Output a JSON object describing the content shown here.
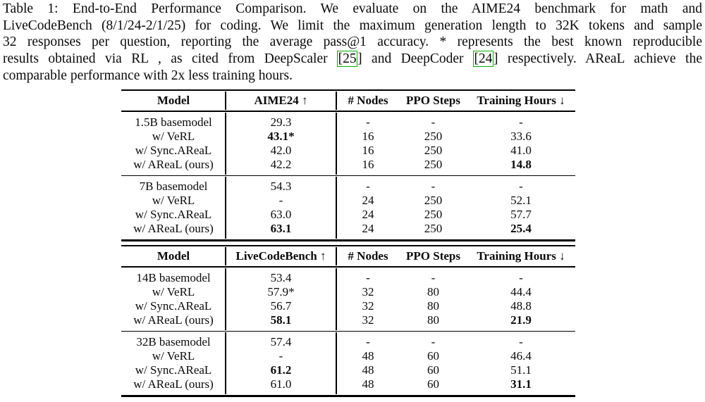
{
  "page": {
    "background": "#ffffff",
    "text_color": "#0a0a0a",
    "citation_border_color": "#00b300"
  },
  "caption": {
    "line1": "Table 1: End-to-End Performance Comparison.  We evaluate on the AIME24 benchmark for math and",
    "line2": "LiveCodeBench (8/1/24-2/1/25) for coding. We limit the maximum generation length to 32K tokens and sample",
    "line3": "32 responses per question, reporting the average pass@1 accuracy. * represents the best known reproducible",
    "line4a": "results obtained via RL , as cited from DeepScaler",
    "cite1": "[25",
    "bracket1": "]",
    "line4b": "and DeepCoder",
    "cite2": "[24",
    "bracket2": "]",
    "line4c": "respectively. AReaL achieve the",
    "line5": "comparable performance with 2x less training hours."
  },
  "table1": {
    "header": {
      "model": "Model",
      "metric": "AIME24 ↑",
      "nodes": "# Nodes",
      "steps": "PPO Steps",
      "hours": "Training Hours ↓"
    },
    "g1": [
      {
        "model": "1.5B basemodel",
        "metric": "29.3",
        "nodes": "-",
        "steps": "-",
        "hours": "-"
      },
      {
        "model": "w/ VeRL",
        "metric": "43.1*",
        "nodes": "16",
        "steps": "250",
        "hours": "33.6"
      },
      {
        "model": "w/ Sync.AReaL",
        "metric": "42.0",
        "nodes": "16",
        "steps": "250",
        "hours": "41.0"
      },
      {
        "model": "w/ AReaL (ours)",
        "metric": "42.2",
        "nodes": "16",
        "steps": "250",
        "hours": "14.8"
      }
    ],
    "g2": [
      {
        "model": "7B basemodel",
        "metric": "54.3",
        "nodes": "-",
        "steps": "-",
        "hours": "-"
      },
      {
        "model": "w/ VeRL",
        "metric": "-",
        "nodes": "24",
        "steps": "250",
        "hours": "52.1"
      },
      {
        "model": "w/ Sync.AReaL",
        "metric": "63.0",
        "nodes": "24",
        "steps": "250",
        "hours": "57.7"
      },
      {
        "model": "w/ AReaL (ours)",
        "metric": "63.1",
        "nodes": "24",
        "steps": "250",
        "hours": "25.4"
      }
    ]
  },
  "table2": {
    "header": {
      "model": "Model",
      "metric": "LiveCodeBench ↑",
      "nodes": "# Nodes",
      "steps": "PPO Steps",
      "hours": "Training Hours ↓"
    },
    "g1": [
      {
        "model": "14B basemodel",
        "metric": "53.4",
        "nodes": "-",
        "steps": "-",
        "hours": "-"
      },
      {
        "model": "w/ VeRL",
        "metric": "57.9*",
        "nodes": "32",
        "steps": "80",
        "hours": "44.4"
      },
      {
        "model": "w/ Sync.AReaL",
        "metric": "56.7",
        "nodes": "32",
        "steps": "80",
        "hours": "48.8"
      },
      {
        "model": "w/ AReaL (ours)",
        "metric": "58.1",
        "nodes": "32",
        "steps": "80",
        "hours": "21.9"
      }
    ],
    "g2": [
      {
        "model": "32B basemodel",
        "metric": "57.4",
        "nodes": "-",
        "steps": "-",
        "hours": "-"
      },
      {
        "model": "w/ VeRL",
        "metric": "-",
        "nodes": "48",
        "steps": "60",
        "hours": "46.4"
      },
      {
        "model": "w/ Sync.AReaL",
        "metric": "61.2",
        "nodes": "48",
        "steps": "60",
        "hours": "51.1"
      },
      {
        "model": "w/ AReaL (ours)",
        "metric": "61.0",
        "nodes": "48",
        "steps": "60",
        "hours": "31.1"
      }
    ]
  }
}
